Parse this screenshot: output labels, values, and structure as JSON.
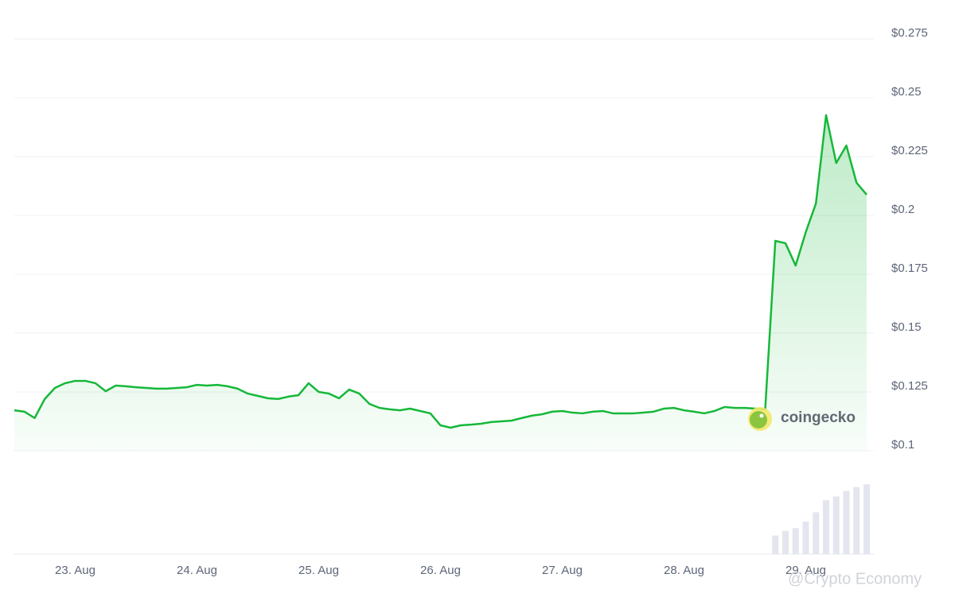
{
  "chart_data": {
    "type": "line",
    "categories": [
      null,
      null,
      null,
      null,
      null,
      null,
      "23. Aug",
      null,
      null,
      null,
      null,
      null,
      null,
      null,
      null,
      null,
      null,
      null,
      "24. Aug",
      null,
      null,
      null,
      null,
      null,
      null,
      null,
      null,
      null,
      null,
      null,
      "25. Aug",
      null,
      null,
      null,
      null,
      null,
      null,
      null,
      null,
      null,
      null,
      null,
      "26. Aug",
      null,
      null,
      null,
      null,
      null,
      null,
      null,
      null,
      null,
      null,
      null,
      "27. Aug",
      null,
      null,
      null,
      null,
      null,
      null,
      null,
      null,
      null,
      null,
      null,
      "28. Aug",
      null,
      null,
      null,
      null,
      null,
      null,
      null,
      null,
      null,
      null,
      null,
      "29. Aug",
      null,
      null,
      null,
      null,
      null,
      null
    ],
    "series": [
      {
        "color": "#16b83a",
        "values": [
          0.1172,
          0.1166,
          0.1139,
          0.122,
          0.1267,
          0.1287,
          0.1297,
          0.1297,
          0.1287,
          0.1253,
          0.1277,
          0.1274,
          0.127,
          0.1267,
          0.1264,
          0.1264,
          0.1267,
          0.127,
          0.128,
          0.1277,
          0.128,
          0.1274,
          0.1264,
          0.1243,
          0.1233,
          0.1223,
          0.122,
          0.123,
          0.1236,
          0.1287,
          0.125,
          0.1243,
          0.1223,
          0.126,
          0.1243,
          0.1199,
          0.1182,
          0.1176,
          0.1172,
          0.1179,
          0.1169,
          0.1159,
          0.1108,
          0.1098,
          0.1108,
          0.1111,
          0.1115,
          0.1122,
          0.1125,
          0.1128,
          0.1139,
          0.1149,
          0.1155,
          0.1166,
          0.1169,
          0.1162,
          0.1159,
          0.1166,
          0.1169,
          0.1159,
          0.1159,
          0.1159,
          0.1162,
          0.1166,
          0.1179,
          0.1182,
          0.1172,
          0.1166,
          0.1159,
          0.1169,
          0.1186,
          0.1182,
          0.1182,
          0.1179,
          0.1176,
          0.1892,
          0.1882,
          0.1787,
          0.1929,
          0.2051,
          0.2426,
          0.2223,
          0.2297,
          0.2139,
          0.2088
        ]
      }
    ],
    "volume": {
      "color": "#e3e6ee",
      "values": [
        null,
        null,
        null,
        null,
        null,
        null,
        null,
        null,
        null,
        null,
        null,
        null,
        null,
        null,
        null,
        null,
        null,
        null,
        null,
        null,
        null,
        null,
        null,
        null,
        null,
        null,
        null,
        null,
        null,
        null,
        null,
        null,
        null,
        null,
        null,
        null,
        null,
        null,
        null,
        null,
        null,
        null,
        null,
        null,
        null,
        null,
        null,
        null,
        null,
        null,
        null,
        null,
        null,
        null,
        null,
        null,
        null,
        null,
        null,
        null,
        null,
        null,
        null,
        null,
        null,
        null,
        null,
        null,
        null,
        null,
        null,
        null,
        null,
        null,
        null,
        20,
        25,
        28,
        35,
        45,
        58,
        62,
        68,
        72,
        75
      ]
    },
    "ylim": [
      0.1,
      0.275
    ],
    "yticks": [
      {
        "value": 0.1,
        "label": "$0.1"
      },
      {
        "value": 0.125,
        "label": "$0.125"
      },
      {
        "value": 0.15,
        "label": "$0.15"
      },
      {
        "value": 0.175,
        "label": "$0.175"
      },
      {
        "value": 0.2,
        "label": "$0.2"
      },
      {
        "value": 0.225,
        "label": "$0.225"
      },
      {
        "value": 0.25,
        "label": "$0.25"
      },
      {
        "value": 0.275,
        "label": "$0.275"
      }
    ],
    "y2lim": [
      0,
      100
    ],
    "grid": true,
    "watermarks": [
      "coingecko",
      "@Crypto Economy"
    ]
  }
}
